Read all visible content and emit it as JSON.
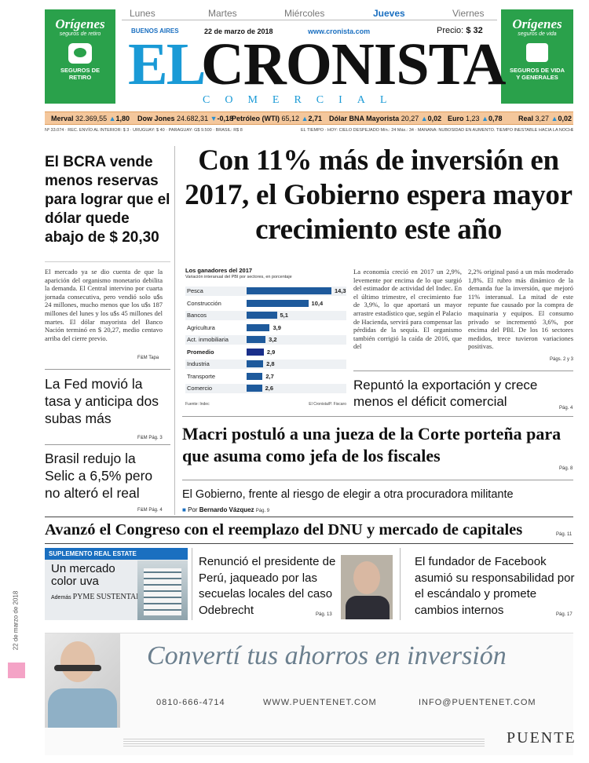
{
  "left_promo": {
    "brand": "Orígenes",
    "tagline": "seguros de retiro",
    "label": "SEGUROS DE RETIRO"
  },
  "right_promo": {
    "brand": "Orígenes",
    "tagline": "seguros de vida",
    "label": "SEGUROS DE VIDA Y GENERALES"
  },
  "days": [
    "Lunes",
    "Martes",
    "Miércoles",
    "Jueves",
    "Viernes"
  ],
  "active_day": "Jueves",
  "masthead": {
    "city": "BUENOS AIRES",
    "date": "22 de marzo de 2018",
    "url": "www.cronista.com",
    "price_label": "Precio:",
    "price": "$ 32",
    "title_el": "EL",
    "title_main": "CRONISTA",
    "subtitle": "COMERCIAL"
  },
  "ticker": [
    {
      "name": "Merval",
      "value": "32.369,55",
      "change": "1,80",
      "dir": "up"
    },
    {
      "name": "Dow Jones",
      "value": "24.682,31",
      "change": "-0,18",
      "dir": "down"
    },
    {
      "name": "Petróleo (WTI)",
      "value": "65,12",
      "change": "2,71",
      "dir": "up"
    },
    {
      "name": "Dólar BNA Mayorista",
      "value": "20,27",
      "change": "0,02",
      "dir": "up"
    },
    {
      "name": "Euro",
      "value": "1,23",
      "change": "0,78",
      "dir": "up"
    },
    {
      "name": "Real",
      "value": "3,27",
      "change": "0,02",
      "dir": "up"
    }
  ],
  "info_line_left": "Nº 33.074 · REC. ENVÍO AL INTERIOR: $ 3 · URUGUAY: $ 40 · PARAGUAY: G$ 9.500 · BRASIL: R$ 8",
  "info_line_right": "EL TIEMPO · HOY: CIELO DESPEJADO Mín.: 24 Máx.: 34 · MAÑANA: NUBOSIDAD EN AUMENTO. TIEMPO INESTABLE HACIA LA NOCHE",
  "left_story": {
    "headline": "El BCRA vende menos reservas para lograr que el dólar quede abajo de $ 20,30",
    "body": "El mercado ya se dio cuenta de que la aparición del organismo monetario debilita la demanda. El Central intervino por cuarta jornada consecutiva, pero vendió solo u$s 24 millones, mucho menos que los u$s 187 millones del lunes y los u$s 45 millones del martes. El dólar mayorista del Banco Nación terminó en $ 20,27, medio centavo arriba del cierre previo.",
    "source": "F&M Tapa"
  },
  "fed_story": {
    "headline": "La Fed movió la tasa y anticipa dos subas más",
    "page": "F&M Pág. 3"
  },
  "brasil_story": {
    "headline": "Brasil redujo la Selic a 6,5% pero no alteró el real",
    "page": "F&M Pág. 4"
  },
  "main_headline": "Con 11% más de inversión en 2017, el Gobierno espera mayor crecimiento este año",
  "chart_data": {
    "type": "bar",
    "title": "Los ganadores del 2017",
    "subtitle": "Variación interanual del PBI por sectores, en porcentaje",
    "categories": [
      "Pesca",
      "Construcción",
      "Bancos",
      "Agricultura",
      "Act. inmobiliaria",
      "Promedio",
      "Industria",
      "Transporte",
      "Comercio"
    ],
    "values": [
      14.3,
      10.4,
      5.1,
      3.9,
      3.2,
      2.9,
      2.8,
      2.7,
      2.6
    ],
    "value_labels": [
      "14,3",
      "10,4",
      "5,1",
      "3,9",
      "3,2",
      "2,9",
      "2,8",
      "2,7",
      "2,6"
    ],
    "highlight": "Promedio",
    "source": "Fuente: Indec",
    "credit": "El Cronista/P. Fiscaro",
    "bar_color": "#1e5a9c",
    "highlight_color": "#1a2f8a"
  },
  "main_col2": "La economía creció en 2017 un 2,9%, levemente por encima de lo que surgió del estimador de actividad del Indec. En el último trimestre, el crecimiento fue de 3,9%, lo que aportará un mayor arrastre estadístico que, según el Palacio de Hacienda, servirá para compensar las pérdidas de la sequía. El organismo también corrigió la caída de 2016, que del",
  "main_col3": "2,2% original pasó a un más moderado 1,8%. El rubro más dinámico de la demanda fue la inversión, que mejoró 11% interanual. La mitad de este repunte fue causado por la compra de maquinaria y equipos. El consumo privado se incrementó 3,6%, por encima del PBI. De los 16 sectores medidos, trece tuvieron variaciones positivas.",
  "main_col3_page": "Págs. 2 y 3",
  "export_story": {
    "headline": "Repuntó la exportación y crece menos el déficit comercial",
    "page": "Pág. 4"
  },
  "macri_story": {
    "headline": "Macri postuló a una jueza de la Corte porteña para que asuma como jefa de los fiscales",
    "page": "Pág. 8"
  },
  "gobierno_story": {
    "headline": "El Gobierno, frente al riesgo de elegir a otra procuradora militante",
    "byline_prefix": "Por",
    "author": "Bernardo Vázquez",
    "page": "Pág. 9"
  },
  "congreso_story": {
    "headline": "Avanzó el Congreso con el reemplazo del DNU y mercado de capitales",
    "page": "Pág. 11"
  },
  "supplement": {
    "label": "SUPLEMENTO REAL ESTATE",
    "title": "Un mercado color uva",
    "also_prefix": "Además",
    "also": "PYME SUSTENTABILIDAD"
  },
  "peru_story": {
    "headline": "Renunció el presidente de Perú, jaqueado por las secuelas locales del caso Odebrecht",
    "page": "Pág. 13"
  },
  "facebook_story": {
    "headline": "El fundador de Facebook asumió su responsabilidad por el escándalo y promete cambios internos",
    "page": "Pág. 17"
  },
  "side_date": "22 de marzo de 2018",
  "ad": {
    "headline": "Convertí tus ahorros en inversión",
    "phone": "0810-666-4714",
    "web": "WWW.PUENTENET.COM",
    "email": "INFO@PUENTENET.COM",
    "brand": "PUENTE"
  },
  "colors": {
    "green": "#2aa14b",
    "masthead_blue": "#1a9ad6",
    "ticker_bg": "#f4c79c",
    "link_blue": "#1a6fc0"
  }
}
